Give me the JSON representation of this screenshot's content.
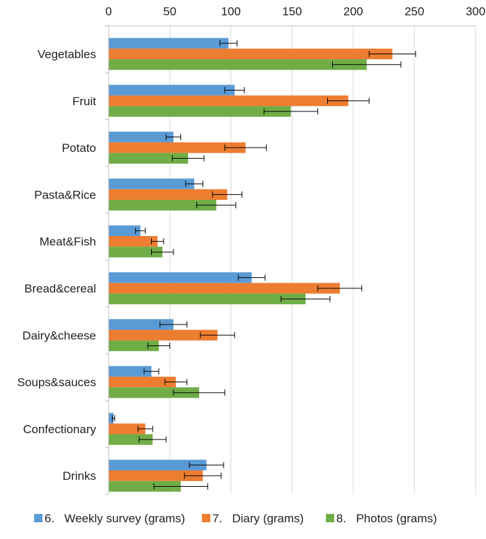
{
  "chart_data": {
    "type": "bar",
    "orientation": "horizontal",
    "categories": [
      "Vegetables",
      "Fruit",
      "Potato",
      "Pasta&Rice",
      "Meat&Fish",
      "Bread&cereal",
      "Dairy&cheese",
      "Soups&sauces",
      "Confectionary",
      "Drinks"
    ],
    "series": [
      {
        "name": "6.   Weekly survey (grams)",
        "color": "#5B9BD5",
        "values": [
          98,
          103,
          53,
          70,
          26,
          117,
          53,
          35,
          4,
          80
        ],
        "error": [
          7,
          8,
          6,
          7,
          4,
          11,
          11,
          6,
          1,
          14
        ]
      },
      {
        "name": "7.   Diary (grams)",
        "color": "#ED7D31",
        "values": [
          232,
          196,
          112,
          97,
          40,
          189,
          89,
          55,
          30,
          77
        ],
        "error": [
          19,
          17,
          17,
          12,
          5,
          18,
          14,
          9,
          6,
          15
        ]
      },
      {
        "name": "8.   Photos (grams)",
        "color": "#70AD47",
        "values": [
          211,
          149,
          65,
          88,
          44,
          161,
          41,
          74,
          36,
          59
        ],
        "error": [
          28,
          22,
          13,
          16,
          9,
          20,
          9,
          21,
          11,
          22
        ]
      }
    ],
    "xlim": [
      0,
      300
    ],
    "xticks": [
      0,
      50,
      100,
      150,
      200,
      250,
      300
    ],
    "x_axis_position": "top",
    "grid": true,
    "legend_position": "bottom"
  }
}
